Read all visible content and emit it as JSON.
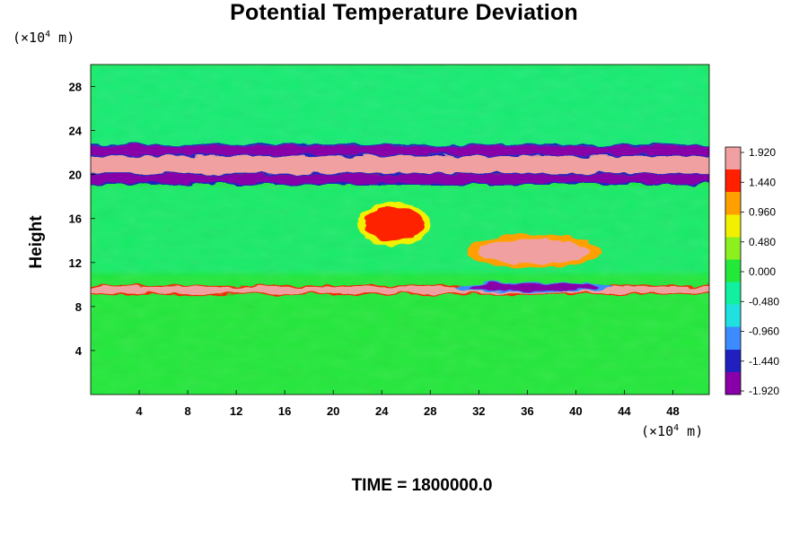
{
  "chart_data": {
    "type": "heatmap",
    "title": "Potential Temperature Deviation",
    "ylabel": "Height",
    "xunit": "(×10",
    "yunit": "(×10",
    "unit_exp": "4",
    "unit_tail": " m)",
    "x_ticks": [
      4,
      8,
      12,
      16,
      20,
      24,
      28,
      32,
      36,
      40,
      44,
      48
    ],
    "y_ticks": [
      4,
      8,
      12,
      16,
      20,
      24,
      28
    ],
    "xlim": [
      0,
      51
    ],
    "ylim": [
      0,
      30
    ],
    "colorbar": {
      "levels": [
        "1.920",
        "1.440",
        "0.960",
        "0.480",
        "0.000",
        "-0.480",
        "-0.960",
        "-1.440",
        "-1.920"
      ],
      "range": [
        -1.92,
        1.92
      ],
      "colors": [
        "#8800a8",
        "#2020c0",
        "#3c8cff",
        "#20e0e0",
        "#10f0a0",
        "#22e83a",
        "#8cf020",
        "#f0f000",
        "#ffa000",
        "#ff2000",
        "#f0a0a0"
      ]
    },
    "features": [
      {
        "kind": "background",
        "value": 0.0
      },
      {
        "kind": "positive-band",
        "y": [
          20.0,
          21.8
        ],
        "value": 1.92
      },
      {
        "kind": "negative-band",
        "y": [
          19.2,
          20.0
        ],
        "value": -1.92
      },
      {
        "kind": "negative-band",
        "y": [
          21.8,
          22.6
        ],
        "value": -1.92
      },
      {
        "kind": "positive-band",
        "y": [
          9.2,
          9.8
        ],
        "value": 1.92
      },
      {
        "kind": "negative-blob",
        "x": [
          30,
          43
        ],
        "y": [
          9.3,
          10.2
        ],
        "value": -1.92
      },
      {
        "kind": "positive-blob",
        "x": [
          31,
          42
        ],
        "y": [
          11.5,
          14.5
        ],
        "value": 1.92
      },
      {
        "kind": "positive-blob",
        "x": [
          22,
          28
        ],
        "y": [
          13.5,
          17.5
        ],
        "value": 1.4
      }
    ],
    "footer": "TIME = 1800000.0"
  }
}
